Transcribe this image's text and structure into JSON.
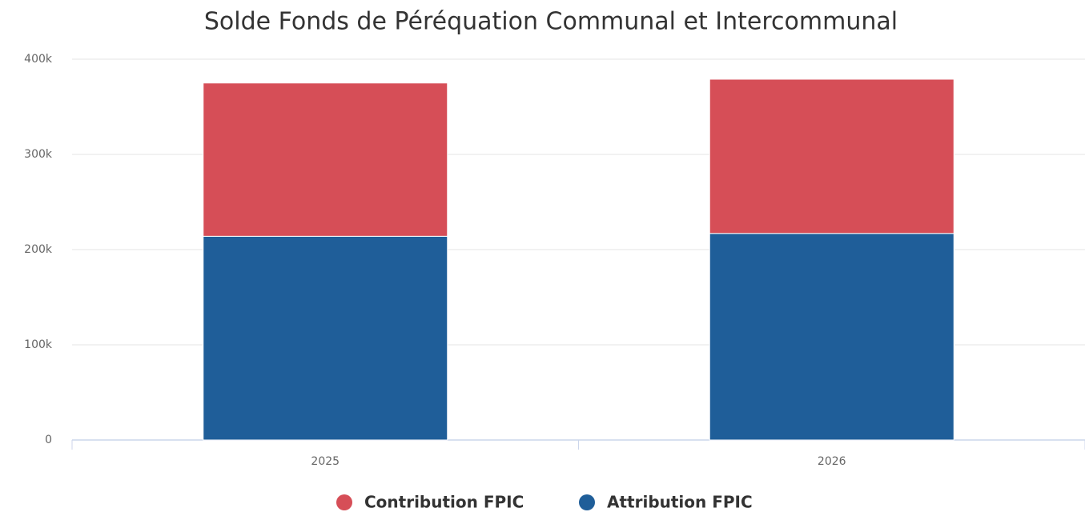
{
  "chart_data": {
    "type": "stacked_bar",
    "title": "Solde Fonds de Péréquation Communal et Intercommunal",
    "categories": [
      "2025",
      "2026"
    ],
    "series": [
      {
        "name": "Contribution FPIC",
        "color": "#d64e57",
        "values": [
          161000,
          162000
        ]
      },
      {
        "name": "Attribution FPIC",
        "color": "#1f5e99",
        "values": [
          214000,
          217000
        ]
      }
    ],
    "ylim": [
      0,
      400000
    ],
    "yticks": [
      0,
      {
        "value": 100000,
        "label": "100k"
      },
      {
        "value": 200000,
        "label": "200k"
      },
      {
        "value": 300000,
        "label": "300k"
      },
      {
        "value": 400000,
        "label": "400k"
      }
    ],
    "grid": true,
    "legend": "bottom"
  }
}
